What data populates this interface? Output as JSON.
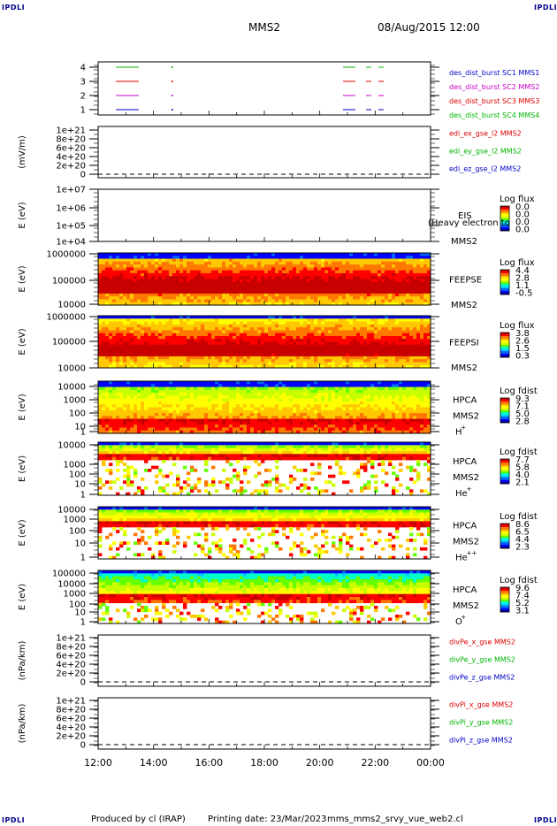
{
  "corner_label": "IPDLI",
  "header": {
    "spacecraft": "MMS2",
    "datetime": "08/Aug/2015 12:00"
  },
  "footer": {
    "produced": "Produced by  cl (IRAP)",
    "printing": "Printing date: 23/Mar/2023",
    "script": "mms_mms2_srvy_vue_web2.cl"
  },
  "x_ticks": [
    "12:00",
    "14:00",
    "16:00",
    "18:00",
    "20:00",
    "22:00",
    "00:00"
  ],
  "colors": {
    "sc1": "#0000c8",
    "sc2": "#c800c8",
    "sc3": "#dc0000",
    "sc4": "#00b400",
    "red": "#dc0000",
    "green": "#00b400",
    "blue": "#0000c8"
  },
  "chart_data": [
    {
      "type": "line",
      "panel": "burst",
      "yticks": [
        "4",
        "3",
        "2",
        "1"
      ],
      "series": [
        {
          "name": "des_dist_burst SC1 MMS1",
          "color": "sc1"
        },
        {
          "name": "des_dist_burst SC2 MMS2",
          "color": "sc2"
        },
        {
          "name": "des_dist_burst SC3 MMS3",
          "color": "sc3"
        },
        {
          "name": "des_dist_burst SC4 MMS4",
          "color": "sc4"
        }
      ]
    },
    {
      "type": "line",
      "panel": "edi",
      "ylabel": "(mV/m)",
      "yticks": [
        "1e+21",
        "8e+20",
        "6e+20",
        "4e+20",
        "2e+20",
        "0"
      ],
      "series": [
        {
          "name": "edi_ex_gse_l2 MMS2",
          "color": "red"
        },
        {
          "name": "edi_ey_gse_l2 MMS2",
          "color": "green"
        },
        {
          "name": "edi_ez_gse_l2 MMS2",
          "color": "blue"
        }
      ]
    },
    {
      "type": "heatmap",
      "panel": "eis",
      "ylabel": "E (eV)",
      "yticks": [
        "1e+07",
        "1e+06",
        "1e+05",
        "1e+04"
      ],
      "labels": [
        "EIS",
        "(Heavy electron to",
        "MMS2"
      ],
      "colorbar": {
        "title": "Log flux",
        "ticks": [
          "0.0",
          "0.0",
          "0.0",
          "0.0"
        ]
      }
    },
    {
      "type": "heatmap",
      "panel": "feepse",
      "ylabel": "E (eV)",
      "yticks": [
        "1000000",
        "100000",
        "10000"
      ],
      "labels": [
        "FEEPSE",
        "MMS2"
      ],
      "colorbar": {
        "title": "Log flux",
        "ticks": [
          "4.4",
          "2.8",
          "1.1",
          "-0.5"
        ]
      }
    },
    {
      "type": "heatmap",
      "panel": "feepsi",
      "ylabel": "E (eV)",
      "yticks": [
        "1000000",
        "100000",
        "10000"
      ],
      "labels": [
        "FEEPSI",
        "MMS2"
      ],
      "colorbar": {
        "title": "Log flux",
        "ticks": [
          "3.8",
          "2.6",
          "1.5",
          "0.3"
        ]
      }
    },
    {
      "type": "heatmap",
      "panel": "hpca-h",
      "ylabel": "E (eV)",
      "yticks": [
        "10000",
        "1000",
        "100",
        "10",
        "1"
      ],
      "labels": [
        "HPCA",
        "MMS2",
        "H",
        "+"
      ],
      "colorbar": {
        "title": "Log fdist",
        "ticks": [
          "9.3",
          "7.1",
          "5.0",
          "2.8"
        ]
      }
    },
    {
      "type": "heatmap",
      "panel": "hpca-he",
      "ylabel": "E (eV)",
      "yticks": [
        "10000",
        "1000",
        "100",
        "10",
        "1"
      ],
      "labels": [
        "HPCA",
        "MMS2",
        "He",
        "+"
      ],
      "colorbar": {
        "title": "Log fdist",
        "ticks": [
          "7.7",
          "5.8",
          "4.0",
          "2.1"
        ]
      }
    },
    {
      "type": "heatmap",
      "panel": "hpca-hepp",
      "ylabel": "E (eV)",
      "yticks": [
        "10000",
        "1000",
        "100",
        "10",
        "1"
      ],
      "labels": [
        "HPCA",
        "MMS2",
        "He",
        "++"
      ],
      "colorbar": {
        "title": "Log fdist",
        "ticks": [
          "8.6",
          "6.5",
          "4.4",
          "2.3"
        ]
      }
    },
    {
      "type": "heatmap",
      "panel": "hpca-o",
      "ylabel": "E (eV)",
      "yticks": [
        "100000",
        "10000",
        "1000",
        "100",
        "10",
        "1"
      ],
      "labels": [
        "HPCA",
        "MMS2",
        "O",
        "+"
      ],
      "colorbar": {
        "title": "Log fdist",
        "ticks": [
          "9.6",
          "7.4",
          "5.2",
          "3.1"
        ]
      }
    },
    {
      "type": "line",
      "panel": "divpe",
      "ylabel": "(nPa/km)",
      "yticks": [
        "1e+21",
        "8e+20",
        "6e+20",
        "4e+20",
        "2e+20",
        "0"
      ],
      "series": [
        {
          "name": "divPe_x_gse MMS2",
          "color": "red"
        },
        {
          "name": "divPe_y_gse MMS2",
          "color": "green"
        },
        {
          "name": "divPe_z_gse MMS2",
          "color": "blue"
        }
      ]
    },
    {
      "type": "line",
      "panel": "divpi",
      "ylabel": "(nPa/km)",
      "yticks": [
        "1e+21",
        "8e+20",
        "6e+20",
        "4e+20",
        "2e+20",
        "0"
      ],
      "series": [
        {
          "name": "divPi_x_gse MMS2",
          "color": "red"
        },
        {
          "name": "divPi_y_gse MMS2",
          "color": "green"
        },
        {
          "name": "divPi_z_gse MMS2",
          "color": "blue"
        }
      ]
    }
  ]
}
